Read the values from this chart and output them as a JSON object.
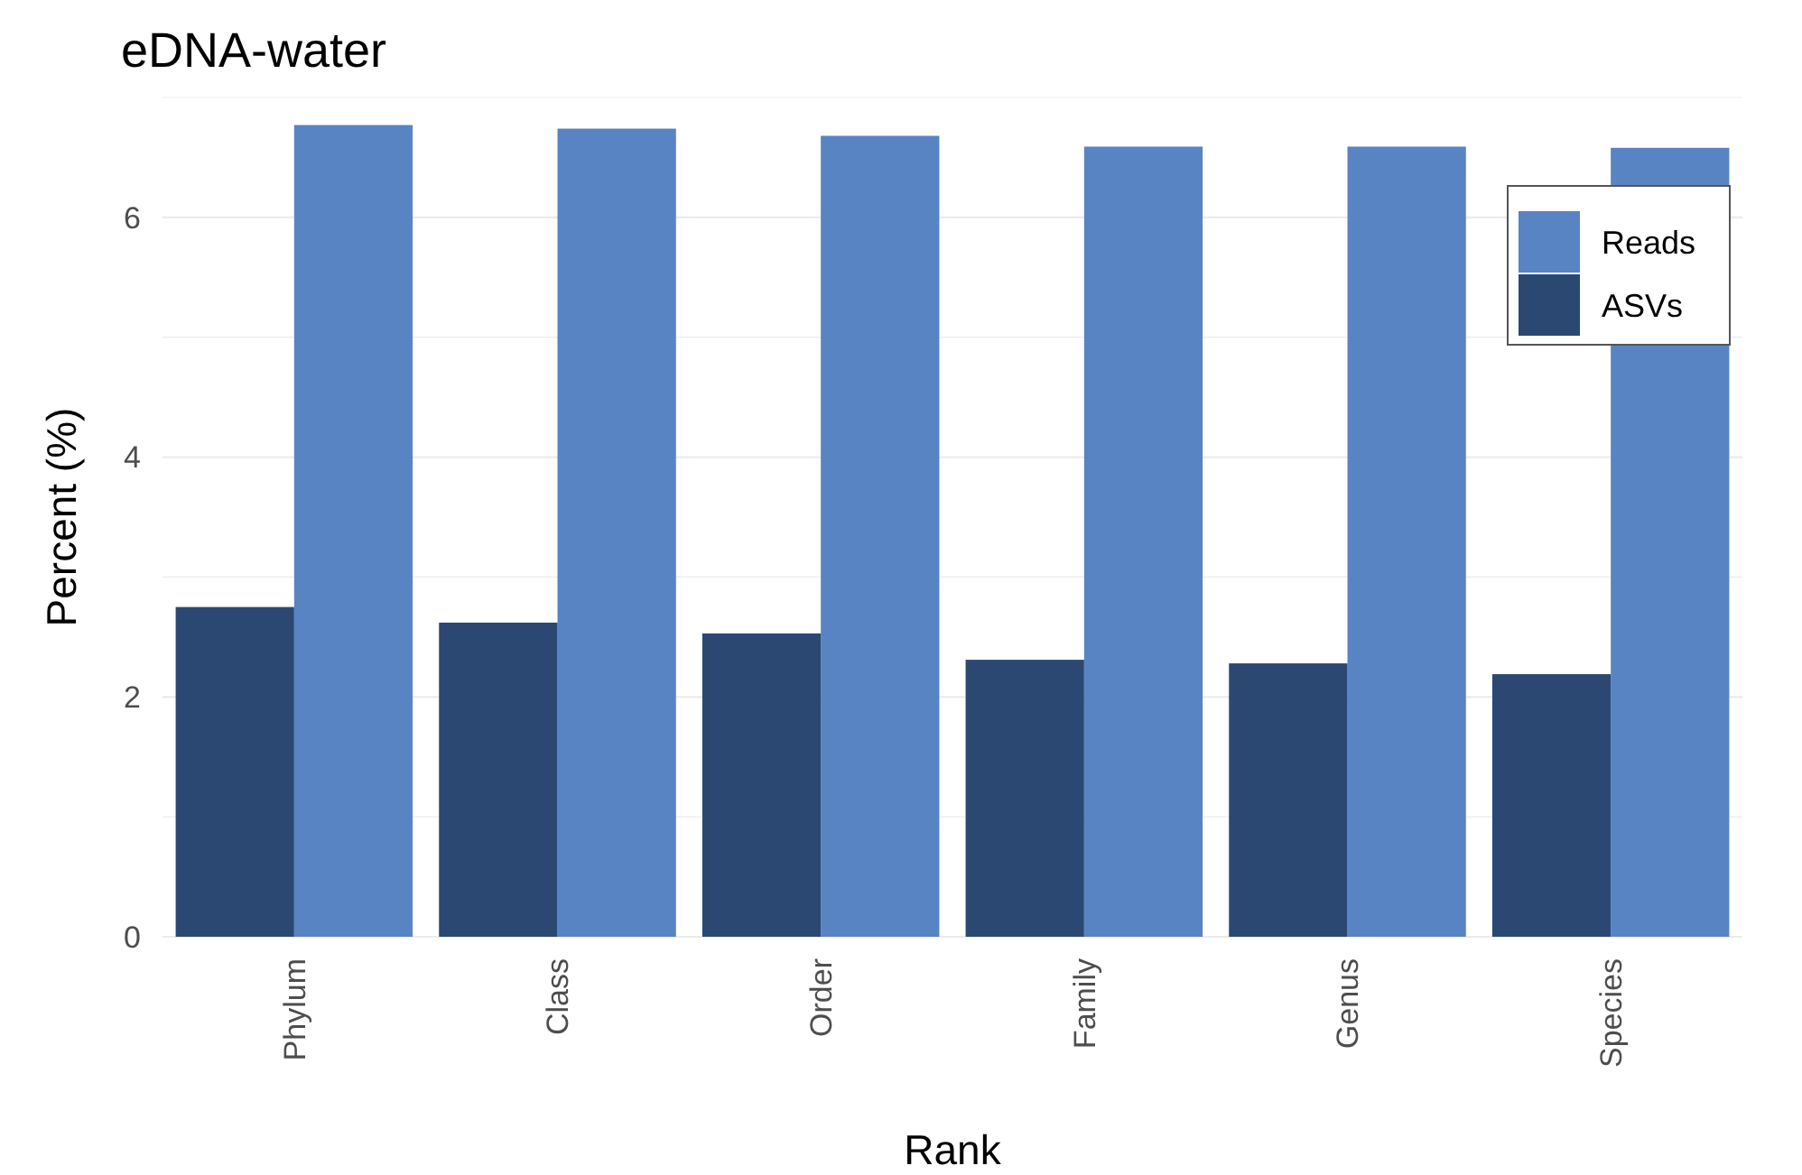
{
  "chart_data": {
    "type": "bar",
    "title": "eDNA-water",
    "xlabel": "Rank",
    "ylabel": "Percent (%)",
    "categories": [
      "Phylum",
      "Class",
      "Order",
      "Family",
      "Genus",
      "Species"
    ],
    "series": [
      {
        "name": "Reads",
        "color": "#5884c4",
        "values": [
          6.77,
          6.74,
          6.68,
          6.59,
          6.59,
          6.58
        ]
      },
      {
        "name": "ASVs",
        "color": "#2b4872",
        "values": [
          2.75,
          2.62,
          2.53,
          2.31,
          2.28,
          2.19
        ]
      }
    ],
    "ylim": [
      0,
      7
    ],
    "yticks": [
      0,
      {
        "value": 1,
        "label": null
      },
      2,
      {
        "value": 3,
        "label": null
      },
      4,
      {
        "value": 5,
        "label": null
      },
      6,
      {
        "value": 7,
        "label": null
      }
    ],
    "grid": "y",
    "legend": "top right"
  }
}
